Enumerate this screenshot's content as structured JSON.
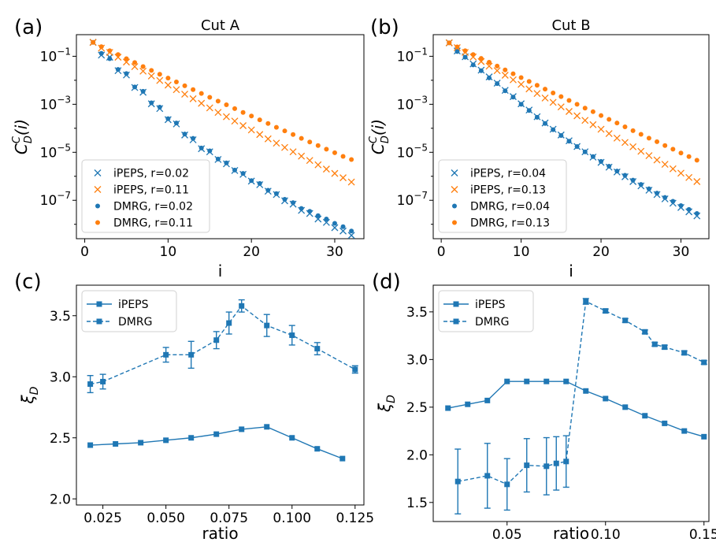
{
  "colors": {
    "blue": "#1f77b4",
    "orange": "#ff7f0e"
  },
  "chart_data": [
    {
      "panel": "(a)",
      "type": "scatter",
      "title": "Cut A",
      "xlabel": "i",
      "ylabel": "C_D^C(i)",
      "xlim": [
        -1,
        33.5
      ],
      "xticks": [
        0,
        10,
        20,
        30
      ],
      "ylog": true,
      "ylim_exp": [
        -8.6,
        -0.1
      ],
      "yticks": [
        {
          "exp": -1,
          "label": "10^-1"
        },
        {
          "exp": -3,
          "label": "10^-3"
        },
        {
          "exp": -5,
          "label": "10^-5"
        },
        {
          "exp": -7,
          "label": "10^-7"
        }
      ],
      "legend": "lower-left",
      "series": [
        {
          "name": "iPEPS, r=0.02",
          "marker": "x",
          "color": "blue",
          "x": [
            1,
            2,
            3,
            4,
            5,
            6,
            7,
            8,
            9,
            10,
            11,
            12,
            13,
            14,
            15,
            16,
            17,
            18,
            19,
            20,
            21,
            22,
            23,
            24,
            25,
            26,
            27,
            28,
            29,
            30,
            31,
            32
          ],
          "y_exp": [
            -0.42,
            -0.95,
            -1.04,
            -1.6,
            -1.78,
            -2.3,
            -2.5,
            -2.98,
            -3.18,
            -3.64,
            -3.82,
            -4.28,
            -4.48,
            -4.85,
            -4.98,
            -5.3,
            -5.48,
            -5.76,
            -5.92,
            -6.2,
            -6.35,
            -6.62,
            -6.76,
            -7.02,
            -7.16,
            -7.42,
            -7.55,
            -7.78,
            -7.92,
            -8.14,
            -8.28,
            -8.46
          ]
        },
        {
          "name": "iPEPS, r=0.11",
          "marker": "x",
          "color": "orange",
          "x": [
            1,
            2,
            3,
            4,
            5,
            6,
            7,
            8,
            9,
            10,
            11,
            12,
            13,
            14,
            15,
            16,
            17,
            18,
            19,
            20,
            21,
            22,
            23,
            24,
            25,
            26,
            27,
            28,
            29,
            30,
            31,
            32
          ],
          "y_exp": [
            -0.42,
            -0.66,
            -0.84,
            -1.04,
            -1.24,
            -1.43,
            -1.62,
            -1.82,
            -2.01,
            -2.2,
            -2.39,
            -2.58,
            -2.77,
            -2.96,
            -3.15,
            -3.34,
            -3.52,
            -3.7,
            -3.89,
            -4.07,
            -4.26,
            -4.44,
            -4.62,
            -4.8,
            -4.98,
            -5.16,
            -5.34,
            -5.52,
            -5.7,
            -5.88,
            -6.06,
            -6.24
          ]
        },
        {
          "name": "DMRG, r=0.02",
          "marker": "dot",
          "color": "blue",
          "x": [
            1,
            2,
            3,
            4,
            5,
            6,
            7,
            8,
            9,
            10,
            11,
            12,
            13,
            14,
            15,
            16,
            17,
            18,
            19,
            20,
            21,
            22,
            23,
            24,
            25,
            26,
            27,
            28,
            29,
            30,
            31,
            32
          ],
          "y_exp": [
            -0.42,
            -0.88,
            -1.1,
            -1.55,
            -1.72,
            -2.28,
            -2.46,
            -2.94,
            -3.12,
            -3.6,
            -3.78,
            -4.24,
            -4.42,
            -4.82,
            -4.94,
            -5.28,
            -5.44,
            -5.74,
            -5.88,
            -6.18,
            -6.3,
            -6.58,
            -6.72,
            -6.96,
            -7.1,
            -7.34,
            -7.46,
            -7.64,
            -7.78,
            -7.96,
            -8.1,
            -8.28
          ]
        },
        {
          "name": "DMRG, r=0.11",
          "marker": "dot",
          "color": "orange",
          "x": [
            1,
            2,
            3,
            4,
            5,
            6,
            7,
            8,
            9,
            10,
            11,
            12,
            13,
            14,
            15,
            16,
            17,
            18,
            19,
            20,
            21,
            22,
            23,
            24,
            25,
            26,
            27,
            28,
            29,
            30,
            31,
            32
          ],
          "y_exp": [
            -0.42,
            -0.6,
            -0.77,
            -0.93,
            -1.1,
            -1.26,
            -1.43,
            -1.59,
            -1.75,
            -1.91,
            -2.07,
            -2.23,
            -2.39,
            -2.55,
            -2.71,
            -2.87,
            -3.02,
            -3.18,
            -3.34,
            -3.49,
            -3.65,
            -3.8,
            -3.96,
            -4.11,
            -4.26,
            -4.42,
            -4.57,
            -4.72,
            -4.87,
            -5.02,
            -5.17,
            -5.3
          ]
        }
      ]
    },
    {
      "panel": "(b)",
      "type": "scatter",
      "title": "Cut B",
      "xlabel": "i",
      "ylabel": "C_D^C(i)",
      "xlim": [
        -1,
        33.5
      ],
      "xticks": [
        0,
        10,
        20,
        30
      ],
      "ylog": true,
      "ylim_exp": [
        -8.6,
        -0.1
      ],
      "yticks": [
        {
          "exp": -1,
          "label": "10^-1"
        },
        {
          "exp": -3,
          "label": "10^-3"
        },
        {
          "exp": -5,
          "label": "10^-5"
        },
        {
          "exp": -7,
          "label": "10^-7"
        }
      ],
      "legend": "lower-left",
      "series": [
        {
          "name": "iPEPS, r=0.04",
          "marker": "x",
          "color": "blue",
          "x": [
            1,
            2,
            3,
            4,
            5,
            6,
            7,
            8,
            9,
            10,
            11,
            12,
            13,
            14,
            15,
            16,
            17,
            18,
            19,
            20,
            21,
            22,
            23,
            24,
            25,
            26,
            27,
            28,
            29,
            30,
            31,
            32
          ],
          "y_exp": [
            -0.44,
            -0.78,
            -1.02,
            -1.32,
            -1.58,
            -1.86,
            -2.12,
            -2.42,
            -2.68,
            -2.98,
            -3.24,
            -3.52,
            -3.78,
            -4.04,
            -4.28,
            -4.52,
            -4.76,
            -4.98,
            -5.2,
            -5.42,
            -5.62,
            -5.82,
            -6.02,
            -6.22,
            -6.4,
            -6.58,
            -6.76,
            -6.94,
            -7.12,
            -7.3,
            -7.48,
            -7.65
          ]
        },
        {
          "name": "iPEPS, r=0.13",
          "marker": "x",
          "color": "orange",
          "x": [
            1,
            2,
            3,
            4,
            5,
            6,
            7,
            8,
            9,
            10,
            11,
            12,
            13,
            14,
            15,
            16,
            17,
            18,
            19,
            20,
            21,
            22,
            23,
            24,
            25,
            26,
            27,
            28,
            29,
            30,
            31,
            32
          ],
          "y_exp": [
            -0.44,
            -0.64,
            -0.84,
            -1.03,
            -1.22,
            -1.41,
            -1.6,
            -1.79,
            -1.98,
            -2.17,
            -2.36,
            -2.55,
            -2.74,
            -2.92,
            -3.11,
            -3.3,
            -3.48,
            -3.67,
            -3.85,
            -4.04,
            -4.22,
            -4.41,
            -4.59,
            -4.77,
            -4.96,
            -5.14,
            -5.32,
            -5.5,
            -5.69,
            -5.87,
            -6.05,
            -6.22
          ]
        },
        {
          "name": "DMRG, r=0.04",
          "marker": "dot",
          "color": "blue",
          "x": [
            1,
            2,
            3,
            4,
            5,
            6,
            7,
            8,
            9,
            10,
            11,
            12,
            13,
            14,
            15,
            16,
            17,
            18,
            19,
            20,
            21,
            22,
            23,
            24,
            25,
            26,
            27,
            28,
            29,
            30,
            31,
            32
          ],
          "y_exp": [
            -0.44,
            -0.8,
            -1.04,
            -1.36,
            -1.6,
            -1.9,
            -2.14,
            -2.44,
            -2.7,
            -3.0,
            -3.26,
            -3.54,
            -3.8,
            -4.06,
            -4.3,
            -4.54,
            -4.76,
            -4.98,
            -5.18,
            -5.38,
            -5.58,
            -5.78,
            -5.96,
            -6.16,
            -6.34,
            -6.52,
            -6.7,
            -6.88,
            -7.04,
            -7.22,
            -7.38,
            -7.55
          ]
        },
        {
          "name": "DMRG, r=0.13",
          "marker": "dot",
          "color": "orange",
          "x": [
            1,
            2,
            3,
            4,
            5,
            6,
            7,
            8,
            9,
            10,
            11,
            12,
            13,
            14,
            15,
            16,
            17,
            18,
            19,
            20,
            21,
            22,
            23,
            24,
            25,
            26,
            27,
            28,
            29,
            30,
            31,
            32
          ],
          "y_exp": [
            -0.44,
            -0.61,
            -0.77,
            -0.93,
            -1.09,
            -1.25,
            -1.41,
            -1.57,
            -1.73,
            -1.89,
            -2.05,
            -2.21,
            -2.37,
            -2.53,
            -2.68,
            -2.84,
            -3.0,
            -3.16,
            -3.31,
            -3.47,
            -3.63,
            -3.78,
            -3.94,
            -4.1,
            -4.25,
            -4.41,
            -4.56,
            -4.72,
            -4.87,
            -5.03,
            -5.18,
            -5.33
          ]
        }
      ]
    },
    {
      "panel": "(c)",
      "type": "line",
      "title": "",
      "xlabel": "ratio",
      "ylabel": "ξ_D",
      "xlim": [
        0.0145,
        0.1285
      ],
      "xticks": [
        {
          "v": 0.025,
          "label": "0.025"
        },
        {
          "v": 0.05,
          "label": "0.050"
        },
        {
          "v": 0.075,
          "label": "0.075"
        },
        {
          "v": 0.1,
          "label": "0.100"
        },
        {
          "v": 0.125,
          "label": "0.125"
        }
      ],
      "ylim": [
        1.95,
        3.75
      ],
      "yticks": [
        {
          "v": 2.0,
          "label": "2.0"
        },
        {
          "v": 2.5,
          "label": "2.5"
        },
        {
          "v": 3.0,
          "label": "3.0"
        },
        {
          "v": 3.5,
          "label": "3.5"
        }
      ],
      "legend": "upper-left",
      "series": [
        {
          "name": "iPEPS",
          "style": "solid",
          "color": "blue",
          "x": [
            0.02,
            0.03,
            0.04,
            0.05,
            0.06,
            0.07,
            0.08,
            0.09,
            0.1,
            0.11,
            0.12
          ],
          "y": [
            2.44,
            2.45,
            2.46,
            2.48,
            2.5,
            2.53,
            2.57,
            2.59,
            2.5,
            2.41,
            2.33
          ]
        },
        {
          "name": "DMRG",
          "style": "dashed",
          "color": "blue",
          "x": [
            0.02,
            0.025,
            0.05,
            0.06,
            0.07,
            0.075,
            0.08,
            0.09,
            0.1,
            0.11,
            0.125
          ],
          "y": [
            2.94,
            2.96,
            3.18,
            3.18,
            3.3,
            3.44,
            3.58,
            3.42,
            3.34,
            3.23,
            3.06
          ],
          "err": [
            0.07,
            0.06,
            0.06,
            0.11,
            0.07,
            0.09,
            0.05,
            0.09,
            0.08,
            0.05,
            0.03
          ]
        }
      ]
    },
    {
      "panel": "(d)",
      "type": "line",
      "title": "",
      "xlabel": "ratio",
      "ylabel": "ξ_D",
      "xlim": [
        0.0125,
        0.1525
      ],
      "xticks": [
        {
          "v": 0.05,
          "label": "0.05"
        },
        {
          "v": 0.1,
          "label": "0.10"
        },
        {
          "v": 0.15,
          "label": "0.15"
        }
      ],
      "ylim": [
        1.3,
        3.78
      ],
      "yticks": [
        {
          "v": 1.5,
          "label": "1.5"
        },
        {
          "v": 2.0,
          "label": "2.0"
        },
        {
          "v": 2.5,
          "label": "2.5"
        },
        {
          "v": 3.0,
          "label": "3.0"
        },
        {
          "v": 3.5,
          "label": "3.5"
        }
      ],
      "legend": "upper-left",
      "series": [
        {
          "name": "iPEPS",
          "style": "solid",
          "color": "blue",
          "x": [
            0.02,
            0.03,
            0.04,
            0.05,
            0.06,
            0.07,
            0.08,
            0.09,
            0.1,
            0.11,
            0.12,
            0.13,
            0.14,
            0.15
          ],
          "y": [
            2.49,
            2.53,
            2.57,
            2.77,
            2.77,
            2.77,
            2.77,
            2.67,
            2.59,
            2.5,
            2.41,
            2.33,
            2.25,
            2.19
          ]
        },
        {
          "name": "DMRG",
          "style": "dashed",
          "color": "blue",
          "x": [
            0.025,
            0.04,
            0.05,
            0.06,
            0.07,
            0.075,
            0.08,
            0.09,
            0.1,
            0.11,
            0.12,
            0.125,
            0.13,
            0.14,
            0.15
          ],
          "y": [
            1.72,
            1.78,
            1.69,
            1.89,
            1.88,
            1.91,
            1.93,
            3.61,
            3.51,
            3.41,
            3.29,
            3.16,
            3.13,
            3.07,
            2.97
          ],
          "err": [
            0.34,
            0.34,
            0.27,
            0.28,
            0.3,
            0.28,
            0.27,
            0.03,
            0.02,
            0.02,
            0.02,
            0.02,
            0.02,
            0.02,
            0.02
          ]
        }
      ]
    }
  ]
}
